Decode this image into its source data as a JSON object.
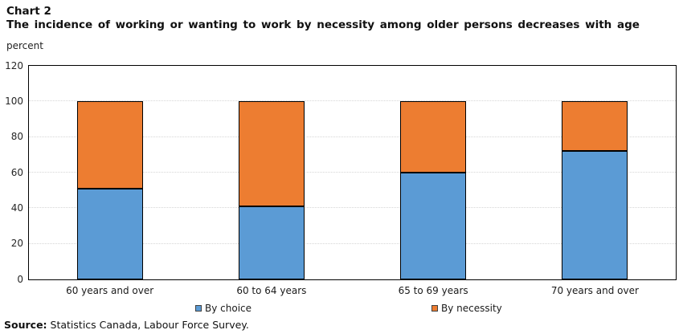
{
  "header": {
    "chart_number": "Chart 2",
    "title": "The incidence of working or wanting to work by necessity among older persons decreases with age"
  },
  "y_axis_unit": "percent",
  "source": {
    "prefix": "Source:",
    "text": "Statistics Canada, Labour Force Survey."
  },
  "colors": {
    "choice": "#5B9BD5",
    "necessity": "#ED7D31",
    "bar_border": "#000000",
    "gridline": "#D6D6D6",
    "plot_border": "#000000"
  },
  "chart_data": {
    "type": "bar",
    "stacked": true,
    "title": "The incidence of working or wanting to work by necessity among older persons decreases with age",
    "xlabel": "",
    "ylabel": "percent",
    "categories": [
      "60 years and over",
      "60 to 64 years",
      "65 to 69 years",
      "70 years and over"
    ],
    "series": [
      {
        "name": "By choice",
        "color": "#5B9BD5",
        "values": [
          51,
          41,
          60,
          72
        ]
      },
      {
        "name": "By necessity",
        "color": "#ED7D31",
        "values": [
          49,
          59,
          40,
          28
        ]
      }
    ],
    "ylim": [
      0,
      120
    ],
    "ytick_step": 20,
    "grid": true,
    "legend_position": "bottom"
  }
}
